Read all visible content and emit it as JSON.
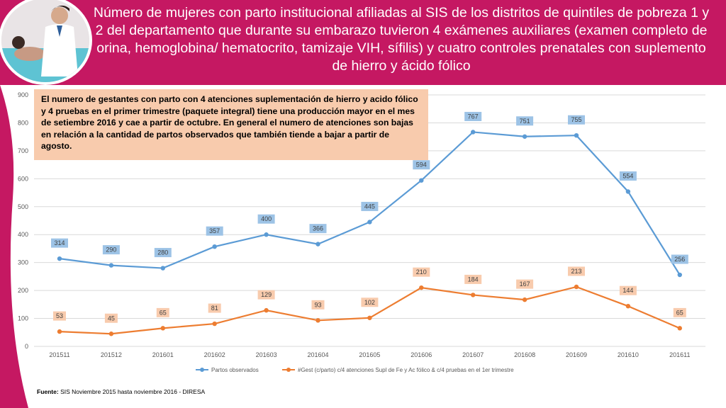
{
  "header": {
    "title": "Número de mujeres con parto institucional afiliadas al SIS de los distritos de quintiles de pobreza 1 y 2 del departamento que durante su embarazo tuvieron 4 exámenes auxiliares (examen completo de orina, hemoglobina/ hematocrito, tamizaje VIH, sífilis) y cuatro controles prenatales con suplemento de hierro y ácido fólico",
    "photo_icon": "doctor-patient-photo"
  },
  "annotation": {
    "text": "El numero de gestantes con parto con 4 atenciones suplementación de hierro y acido fólico y 4 pruebas en el primer trimestre (paquete integral) tiene una producción mayor en el mes de setiembre 2016 y cae a partir de octubre. En general el numero de atenciones son bajas en relación a la cantidad de partos observados que también tiende a bajar a partir de agosto."
  },
  "source": {
    "label": "Fuente:",
    "text": " SIS Noviembre 2015 hasta noviembre 2016 - DIRESA"
  },
  "colors": {
    "header": "#c51862",
    "series1": "#5b9bd5",
    "series2": "#ed7d31",
    "label_bg1": "#9dc3e6",
    "label_bg2": "#f8cbad"
  },
  "chart_data": {
    "type": "line",
    "categories": [
      "201511",
      "201512",
      "201601",
      "201602",
      "201603",
      "201604",
      "201605",
      "201606",
      "201607",
      "201608",
      "201609",
      "201610",
      "201611"
    ],
    "ylim": [
      0,
      900
    ],
    "yticks": [
      0,
      100,
      200,
      300,
      400,
      500,
      600,
      700,
      800,
      900
    ],
    "grid": true,
    "legend_position": "bottom",
    "series": [
      {
        "name": "Partos observados",
        "values": [
          314,
          290,
          280,
          357,
          400,
          366,
          445,
          594,
          767,
          751,
          755,
          554,
          256
        ]
      },
      {
        "name": "#Gest (c/parto) c/4 atenciones Supl de Fe y Ac fólico & c/4 pruebas en el 1er trimestre",
        "values": [
          53,
          45,
          65,
          81,
          129,
          93,
          102,
          210,
          184,
          167,
          213,
          144,
          65
        ]
      }
    ]
  }
}
